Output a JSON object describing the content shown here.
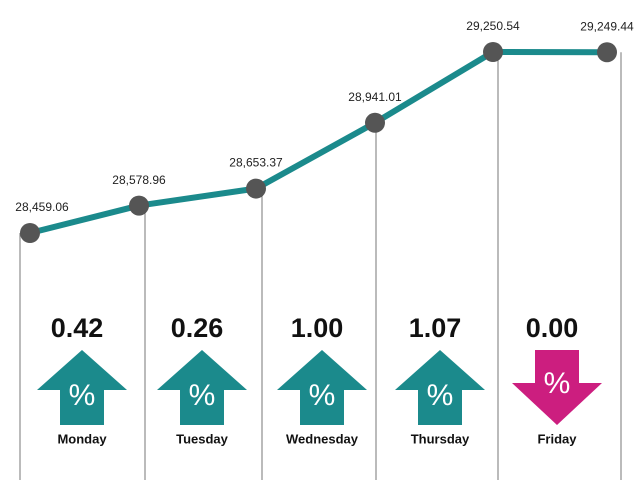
{
  "chart_data": [
    {
      "type": "line",
      "values": [
        28459.06,
        28578.96,
        28653.37,
        28941.01,
        29250.54,
        29249.44
      ],
      "value_labels": [
        "28,459.06",
        "28,578.96",
        "28,653.37",
        "28,941.01",
        "29,250.54",
        "29,249.44"
      ],
      "color": "#1b8a8c",
      "marker_color": "#555555"
    },
    {
      "type": "arrow",
      "categories": [
        "Monday",
        "Tuesday",
        "Wednesday",
        "Thursday",
        "Friday"
      ],
      "values": [
        0.42,
        0.26,
        1.0,
        1.07,
        0.0
      ],
      "value_labels": [
        "0.42",
        "0.26",
        "1.00",
        "1.07",
        "0.00"
      ],
      "directions": [
        "up",
        "up",
        "up",
        "up",
        "down"
      ],
      "colors": [
        "#1b8a8c",
        "#1b8a8c",
        "#1b8a8c",
        "#1b8a8c",
        "#cc1e7f"
      ],
      "symbol": "%"
    }
  ]
}
